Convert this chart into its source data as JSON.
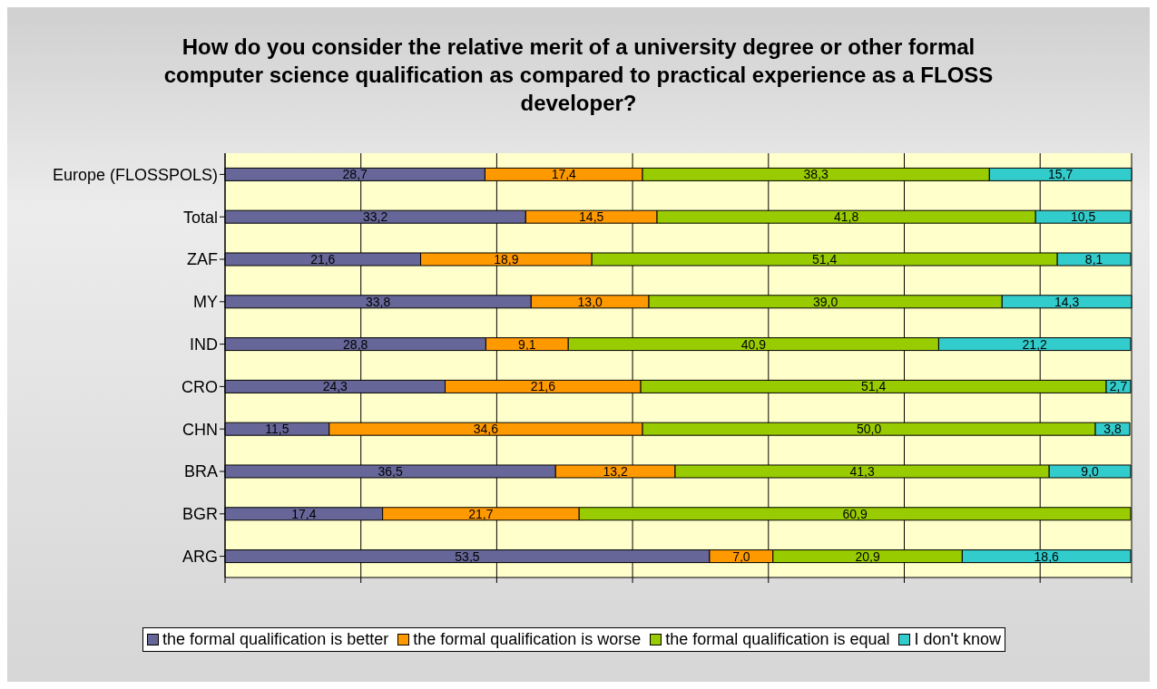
{
  "chart_data": {
    "type": "bar",
    "orientation": "horizontal",
    "stacked": true,
    "title": "How do you consider the relative merit of a university degree or other formal computer science qualification as compared to practical experience as a FLOSS developer?",
    "categories": [
      "Europe (FLOSSPOLS)",
      "Total",
      "ZAF",
      "MY",
      "IND",
      "CRO",
      "CHN",
      "BRA",
      "BGR",
      "ARG"
    ],
    "series": [
      {
        "name": "the formal qualification is better",
        "color": "#666699",
        "values": [
          28.7,
          33.2,
          21.6,
          33.8,
          28.8,
          24.3,
          11.5,
          36.5,
          17.4,
          53.5
        ],
        "value_labels": [
          "28,7",
          "33,2",
          "21,6",
          "33,8",
          "28,8",
          "24,3",
          "11,5",
          "36,5",
          "17,4",
          "53,5"
        ]
      },
      {
        "name": "the formal qualification is worse",
        "color": "#ff9900",
        "values": [
          17.4,
          14.5,
          18.9,
          13.0,
          9.1,
          21.6,
          34.6,
          13.2,
          21.7,
          7.0
        ],
        "value_labels": [
          "17,4",
          "14,5",
          "18,9",
          "13,0",
          "9,1",
          "21,6",
          "34,6",
          "13,2",
          "21,7",
          "7,0"
        ]
      },
      {
        "name": "the formal qualification is equal",
        "color": "#99cc00",
        "values": [
          38.3,
          41.8,
          51.4,
          39.0,
          40.9,
          51.4,
          50.0,
          41.3,
          60.9,
          20.9
        ],
        "value_labels": [
          "38,3",
          "41,8",
          "51,4",
          "39,0",
          "40,9",
          "51,4",
          "50,0",
          "41,3",
          "60,9",
          "20,9"
        ]
      },
      {
        "name": "I don't know",
        "color": "#33cccc",
        "values": [
          15.7,
          10.5,
          8.1,
          14.3,
          21.2,
          2.7,
          3.8,
          9.0,
          null,
          18.6
        ],
        "value_labels": [
          "15,7",
          "10,5",
          "8,1",
          "14,3",
          "21,2",
          "2,7",
          "3,8",
          "9,0",
          null,
          "18,6"
        ]
      }
    ],
    "grid": "x",
    "legend": "bottom",
    "tick_labels": "y"
  }
}
